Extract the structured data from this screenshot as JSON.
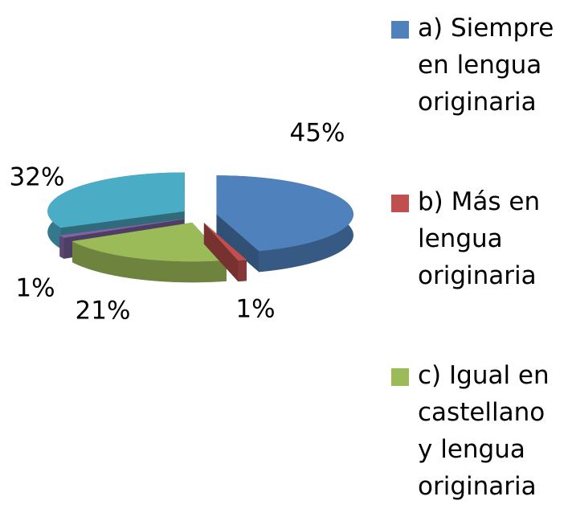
{
  "chart_data": {
    "type": "pie",
    "categories": [
      "a) Siempre en lengua originaria",
      "b) Más en lengua originaria",
      "c) Igual en castellano y lengua originaria",
      null,
      null
    ],
    "values": [
      45,
      1,
      21,
      1,
      32
    ],
    "value_labels": [
      "45%",
      "1%",
      "21%",
      "1%",
      "32%"
    ],
    "colors": [
      "#4f81bd",
      "#c0504d",
      "#9bbb59",
      "#8064a2",
      "#4bacc6"
    ],
    "legend": "right"
  }
}
